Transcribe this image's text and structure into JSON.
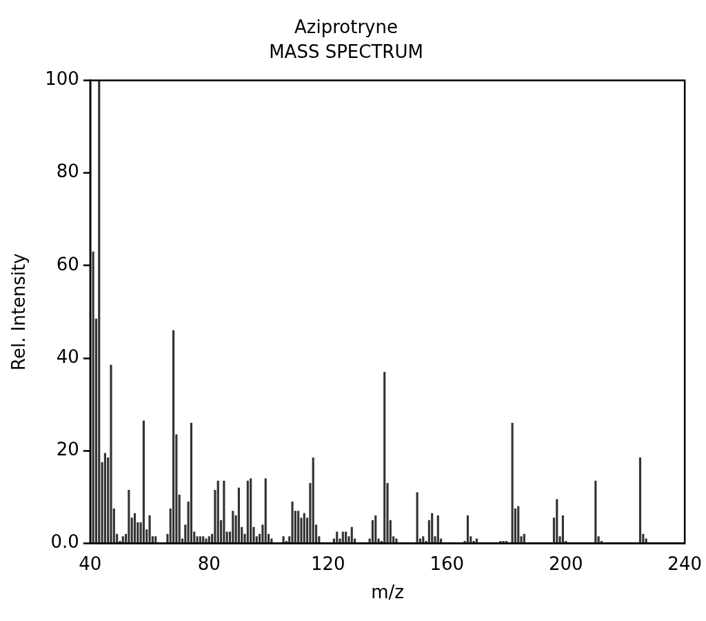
{
  "chart_data": {
    "type": "bar",
    "title": "Aziprotryne",
    "subtitle": "MASS SPECTRUM",
    "xlabel": "m/z",
    "ylabel": "Rel. Intensity",
    "x": [
      41,
      42,
      43,
      44,
      45,
      46,
      47,
      48,
      49,
      50,
      51,
      52,
      53,
      54,
      55,
      56,
      57,
      58,
      59,
      60,
      61,
      62,
      66,
      67,
      68,
      69,
      70,
      71,
      72,
      73,
      74,
      75,
      76,
      77,
      78,
      79,
      80,
      81,
      82,
      83,
      84,
      85,
      86,
      87,
      88,
      89,
      90,
      91,
      92,
      93,
      94,
      95,
      96,
      97,
      98,
      99,
      100,
      101,
      105,
      106,
      107,
      108,
      109,
      110,
      111,
      112,
      113,
      114,
      115,
      116,
      117,
      122,
      123,
      124,
      125,
      126,
      127,
      128,
      129,
      134,
      135,
      136,
      137,
      138,
      139,
      140,
      141,
      142,
      143,
      150,
      151,
      152,
      153,
      154,
      155,
      156,
      157,
      158,
      166,
      167,
      168,
      169,
      170,
      178,
      179,
      180,
      182,
      183,
      184,
      185,
      186,
      196,
      197,
      198,
      199,
      200,
      210,
      211,
      212,
      225,
      226,
      227
    ],
    "values": [
      63,
      48.5,
      100,
      17.5,
      19.5,
      18.5,
      38.5,
      7.5,
      2,
      0.5,
      1.5,
      2,
      11.5,
      5.5,
      6.5,
      4.5,
      4.5,
      26.5,
      3,
      6,
      1.5,
      1.5,
      2,
      7.5,
      46,
      23.5,
      10.5,
      1,
      4,
      9,
      26,
      2.5,
      1.5,
      1.5,
      1.5,
      1,
      1.5,
      2,
      11.5,
      13.5,
      5,
      13.5,
      2.5,
      2.5,
      7,
      6,
      12,
      3.5,
      2,
      13.5,
      14,
      3.5,
      1.5,
      2,
      4,
      14,
      2,
      1,
      1.5,
      0.5,
      1.5,
      9,
      7,
      7,
      5.5,
      6.5,
      5.5,
      13,
      18.5,
      4,
      1.5,
      1,
      2.5,
      1,
      2.5,
      2.5,
      1.5,
      3.5,
      1,
      1,
      5,
      6,
      1,
      0.5,
      37,
      13,
      5,
      1.5,
      1,
      11,
      1,
      1.5,
      0.5,
      5,
      6.5,
      1.5,
      6,
      1,
      0.5,
      6,
      1.5,
      0.5,
      1,
      0.5,
      0.5,
      0.5,
      26,
      7.5,
      8,
      1.5,
      2,
      5.5,
      9.5,
      1.5,
      6,
      0.5,
      13.5,
      1.5,
      0.5,
      18.5,
      2,
      1
    ],
    "color": "#333333",
    "xlim": [
      40,
      240
    ],
    "xticks": [
      40,
      80,
      120,
      160,
      200,
      240
    ],
    "ylim": [
      0,
      100
    ],
    "yticks": [
      {
        "value": 0,
        "label": "0.0"
      },
      20,
      40,
      60,
      80,
      100
    ],
    "grid": false,
    "legend": false
  }
}
